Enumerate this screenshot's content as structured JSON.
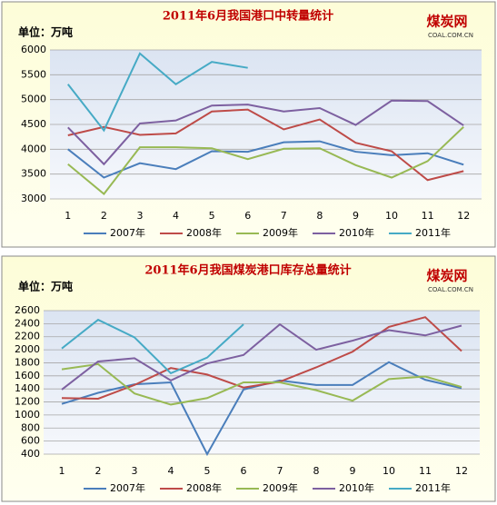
{
  "chart_data": [
    {
      "type": "line",
      "title": "2011年6月我国港口中转量统计",
      "ylabel": "单位：万吨",
      "logo": "煤炭网",
      "logo_sub": "COAL.COM.CN",
      "categories": [
        "1",
        "2",
        "3",
        "4",
        "5",
        "6",
        "7",
        "8",
        "9",
        "10",
        "11",
        "12"
      ],
      "ylim": [
        3000,
        6000
      ],
      "yticks": [
        3000,
        3500,
        4000,
        4500,
        5000,
        5500,
        6000
      ],
      "grid": true,
      "legend": "bottom",
      "series": [
        {
          "name": "2007年",
          "color": "#4a7ebb",
          "values": [
            4000,
            3430,
            3720,
            3600,
            3960,
            3950,
            4140,
            4160,
            3950,
            3880,
            3920,
            3690
          ]
        },
        {
          "name": "2008年",
          "color": "#be4b48",
          "values": [
            4280,
            4450,
            4290,
            4320,
            4760,
            4800,
            4400,
            4600,
            4130,
            3960,
            3380,
            3560
          ]
        },
        {
          "name": "2009年",
          "color": "#98b954",
          "values": [
            3700,
            3100,
            4040,
            4040,
            4020,
            3800,
            4010,
            4020,
            3680,
            3430,
            3760,
            4450
          ]
        },
        {
          "name": "2010年",
          "color": "#7d60a0",
          "values": [
            4440,
            3700,
            4520,
            4580,
            4880,
            4900,
            4760,
            4830,
            4490,
            4980,
            4970,
            4480
          ]
        },
        {
          "name": "2011年",
          "color": "#46aac5",
          "values": [
            5310,
            4380,
            5930,
            5310,
            5760,
            5640,
            null,
            null,
            null,
            null,
            null,
            null
          ]
        }
      ]
    },
    {
      "type": "line",
      "title": "2011年6月我国煤炭港口库存总量统计",
      "ylabel": "单位：万吨",
      "logo": "煤炭网",
      "logo_sub": "COAL.COM.CN",
      "categories": [
        "1",
        "2",
        "3",
        "4",
        "5",
        "6",
        "7",
        "8",
        "9",
        "10",
        "11",
        "12"
      ],
      "ylim": [
        400,
        2600
      ],
      "yticks": [
        400,
        600,
        800,
        1000,
        1200,
        1400,
        1600,
        1800,
        2000,
        2200,
        2400,
        2600
      ],
      "grid": true,
      "legend": "bottom",
      "series": [
        {
          "name": "2007年",
          "color": "#4a7ebb",
          "values": [
            1170,
            1340,
            1470,
            1500,
            400,
            1390,
            1530,
            1460,
            1460,
            1810,
            1540,
            1410
          ]
        },
        {
          "name": "2008年",
          "color": "#be4b48",
          "values": [
            1260,
            1250,
            1460,
            1720,
            1620,
            1420,
            1510,
            1730,
            1970,
            2350,
            2500,
            1980
          ]
        },
        {
          "name": "2009年",
          "color": "#98b954",
          "values": [
            1700,
            1780,
            1330,
            1160,
            1260,
            1500,
            1500,
            1380,
            1220,
            1550,
            1590,
            1430
          ]
        },
        {
          "name": "2010年",
          "color": "#7d60a0",
          "values": [
            1390,
            1820,
            1870,
            1530,
            1790,
            1920,
            2390,
            2000,
            2140,
            2300,
            2220,
            2370
          ]
        },
        {
          "name": "2011年",
          "color": "#46aac5",
          "values": [
            2020,
            2460,
            2190,
            1640,
            1880,
            2390,
            null,
            null,
            null,
            null,
            null,
            null
          ]
        }
      ]
    }
  ]
}
